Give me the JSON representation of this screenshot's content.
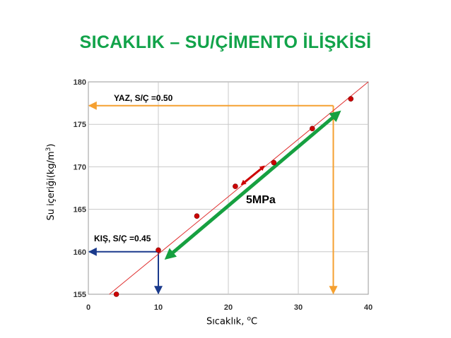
{
  "chart_data": {
    "type": "scatter",
    "title": "SICAKLIK – SU/ÇİMENTO İLİŞKİSİ",
    "xlabel": "Sıcaklık, ",
    "xlabel_sup": "o",
    "xlabel_unit": "C",
    "ylabel": "Su içeriği(kg/m",
    "ylabel_sup": "3",
    "ylabel_end": ")",
    "xlim": [
      0,
      40
    ],
    "ylim": [
      155,
      180
    ],
    "x_ticks": [
      0,
      10,
      20,
      30,
      40
    ],
    "y_ticks": [
      155,
      160,
      165,
      170,
      175,
      180
    ],
    "grid": true,
    "series": [
      {
        "points": [
          {
            "x": 4,
            "y": 155
          },
          {
            "x": 10,
            "y": 160.2
          },
          {
            "x": 15.5,
            "y": 164.2
          },
          {
            "x": 21,
            "y": 167.7
          },
          {
            "x": 26.5,
            "y": 170.5
          },
          {
            "x": 32,
            "y": 174.5
          },
          {
            "x": 37.5,
            "y": 178
          }
        ],
        "color": "#cc0000"
      }
    ],
    "trend_line": {
      "from": {
        "x": 3,
        "y": 155
      },
      "to": {
        "x": 40,
        "y": 180
      },
      "color": "#e03030"
    },
    "band_arrow": {
      "from": {
        "x": 11.5,
        "y": 159.5
      },
      "to": {
        "x": 35.5,
        "y": 176.2
      },
      "color": "#16a040"
    },
    "small_arrow": {
      "from": {
        "x": 22,
        "y": 168
      },
      "to": {
        "x": 25,
        "y": 170
      },
      "color": "#cc0000"
    },
    "annotations": {
      "summer": {
        "label": "YAZ, S/Ç =0.50",
        "x": 35,
        "y": 177.2,
        "color": "#f5a030"
      },
      "winter": {
        "label": "KIŞ, S/Ç =0.45",
        "x": 10,
        "y": 160,
        "color": "#1a3a8c"
      },
      "strength": {
        "label": "5MPa"
      }
    }
  }
}
